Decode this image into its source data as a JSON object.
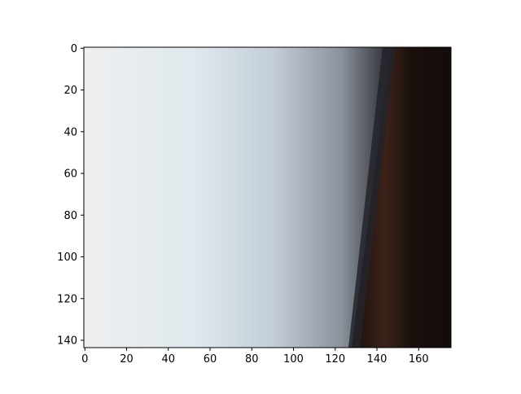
{
  "chart_data": {
    "type": "heatmap",
    "content": "image",
    "title": "",
    "xlabel": "",
    "ylabel": "",
    "xlim": [
      -0.5,
      175.5
    ],
    "ylim": [
      143.5,
      -0.5
    ],
    "x_ticks": [
      0,
      20,
      40,
      60,
      80,
      100,
      120,
      140,
      160
    ],
    "y_ticks": [
      0,
      20,
      40,
      60,
      80,
      100,
      120,
      140
    ],
    "grid": false,
    "colors": {
      "left_edge": "#efefef",
      "bright_band": "#dfe9ee",
      "mid_band": "#c3cdd6",
      "shadow_band": "#8a929b",
      "edge_dark": "#2a2a30",
      "right_dark": "#1c110d",
      "brown_strip": "#3c2219"
    }
  }
}
